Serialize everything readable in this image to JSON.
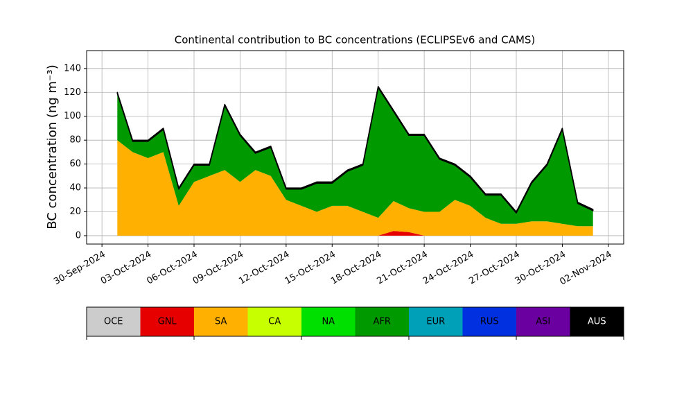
{
  "chart_data": {
    "type": "stacked_area",
    "title": "Continental contribution to BC concentrations (ECLIPSEv6 and CAMS)",
    "ylabel": "BC concentration (ng m⁻³)",
    "x": [
      "2024-10-01",
      "2024-10-02",
      "2024-10-03",
      "2024-10-04",
      "2024-10-05",
      "2024-10-06",
      "2024-10-07",
      "2024-10-08",
      "2024-10-09",
      "2024-10-10",
      "2024-10-11",
      "2024-10-12",
      "2024-10-13",
      "2024-10-14",
      "2024-10-15",
      "2024-10-16",
      "2024-10-17",
      "2024-10-18",
      "2024-10-19",
      "2024-10-20",
      "2024-10-21",
      "2024-10-22",
      "2024-10-23",
      "2024-10-24",
      "2024-10-25",
      "2024-10-26",
      "2024-10-27",
      "2024-10-28",
      "2024-10-29",
      "2024-10-30",
      "2024-10-31",
      "2024-11-01"
    ],
    "series": [
      {
        "name": "OCE",
        "color": "#cccccc",
        "values": [
          0,
          0,
          0,
          0,
          0,
          0,
          0,
          0,
          0,
          0,
          0,
          0,
          0,
          0,
          0,
          0,
          0,
          0,
          0,
          0,
          0,
          0,
          0,
          0,
          0,
          0,
          0,
          0,
          0,
          0,
          0,
          0
        ]
      },
      {
        "name": "GNL",
        "color": "#e60000",
        "values": [
          0,
          0,
          0,
          0,
          0,
          0,
          0,
          0,
          0,
          0,
          0,
          0,
          0,
          0,
          0,
          0,
          0,
          0,
          4,
          3,
          0,
          0,
          0,
          0,
          0,
          0,
          0,
          0,
          0,
          0,
          0,
          0
        ]
      },
      {
        "name": "SA",
        "color": "#ffb000",
        "values": [
          80,
          70,
          65,
          70,
          25,
          45,
          50,
          55,
          45,
          55,
          50,
          30,
          25,
          20,
          25,
          25,
          20,
          15,
          25,
          20,
          20,
          20,
          30,
          25,
          15,
          10,
          10,
          12,
          12,
          10,
          8,
          8
        ]
      },
      {
        "name": "CA",
        "color": "#c8ff00",
        "values": [
          0,
          0,
          0,
          0,
          0,
          0,
          0,
          0,
          0,
          0,
          0,
          0,
          0,
          0,
          0,
          0,
          0,
          0,
          0,
          0,
          0,
          0,
          0,
          0,
          0,
          0,
          0,
          0,
          0,
          0,
          0,
          0
        ]
      },
      {
        "name": "NA",
        "color": "#00e000",
        "values": [
          0,
          0,
          0,
          0,
          0,
          0,
          0,
          0,
          0,
          0,
          0,
          0,
          0,
          0,
          0,
          0,
          0,
          0,
          0,
          0,
          0,
          0,
          0,
          0,
          0,
          0,
          0,
          0,
          0,
          0,
          0,
          0
        ]
      },
      {
        "name": "AFR",
        "color": "#009900",
        "values": [
          39,
          9,
          14,
          19,
          14,
          14,
          9,
          54,
          39,
          14,
          24,
          9,
          14,
          24,
          19,
          29,
          39,
          109,
          75,
          61,
          64,
          44,
          29,
          24,
          19,
          24,
          9,
          32,
          47,
          79,
          19,
          13
        ]
      },
      {
        "name": "EUR",
        "color": "#00a0b8",
        "values": [
          0,
          0,
          0,
          0,
          0,
          0,
          0,
          0,
          0,
          0,
          0,
          0,
          0,
          0,
          0,
          0,
          0,
          0,
          0,
          0,
          0,
          0,
          0,
          0,
          0,
          0,
          0,
          0,
          0,
          0,
          0,
          0
        ]
      },
      {
        "name": "RUS",
        "color": "#0030e0",
        "values": [
          0,
          0,
          0,
          0,
          0,
          0,
          0,
          0,
          0,
          0,
          0,
          0,
          0,
          0,
          0,
          0,
          0,
          0,
          0,
          0,
          0,
          0,
          0,
          0,
          0,
          0,
          0,
          0,
          0,
          0,
          0,
          0
        ]
      },
      {
        "name": "ASI",
        "color": "#6a00a0",
        "values": [
          0,
          0,
          0,
          0,
          0,
          0,
          0,
          0,
          0,
          0,
          0,
          0,
          0,
          0,
          0,
          0,
          0,
          0,
          0,
          0,
          0,
          0,
          0,
          0,
          0,
          0,
          0,
          0,
          0,
          0,
          0,
          0
        ]
      },
      {
        "name": "AUS",
        "color": "#000000",
        "values": [
          1,
          1,
          1,
          1,
          1,
          1,
          1,
          1,
          1,
          1,
          1,
          1,
          1,
          1,
          1,
          1,
          1,
          1,
          1,
          1,
          1,
          1,
          1,
          1,
          1,
          1,
          1,
          1,
          1,
          1,
          1,
          1
        ]
      }
    ],
    "xlim": [
      "2024-09-29",
      "2024-11-03"
    ],
    "xticks": [
      {
        "value": "2024-09-30",
        "label": "30-Sep-2024"
      },
      {
        "value": "2024-10-03",
        "label": "03-Oct-2024"
      },
      {
        "value": "2024-10-06",
        "label": "06-Oct-2024"
      },
      {
        "value": "2024-10-09",
        "label": "09-Oct-2024"
      },
      {
        "value": "2024-10-12",
        "label": "12-Oct-2024"
      },
      {
        "value": "2024-10-15",
        "label": "15-Oct-2024"
      },
      {
        "value": "2024-10-18",
        "label": "18-Oct-2024"
      },
      {
        "value": "2024-10-21",
        "label": "21-Oct-2024"
      },
      {
        "value": "2024-10-24",
        "label": "24-Oct-2024"
      },
      {
        "value": "2024-10-27",
        "label": "27-Oct-2024"
      },
      {
        "value": "2024-10-30",
        "label": "30-Oct-2024"
      },
      {
        "value": "2024-11-02",
        "label": "02-Nov-2024"
      }
    ],
    "ylim": [
      -7,
      155
    ],
    "yticks": [
      0,
      20,
      40,
      60,
      80,
      100,
      120,
      140
    ],
    "grid": true
  }
}
